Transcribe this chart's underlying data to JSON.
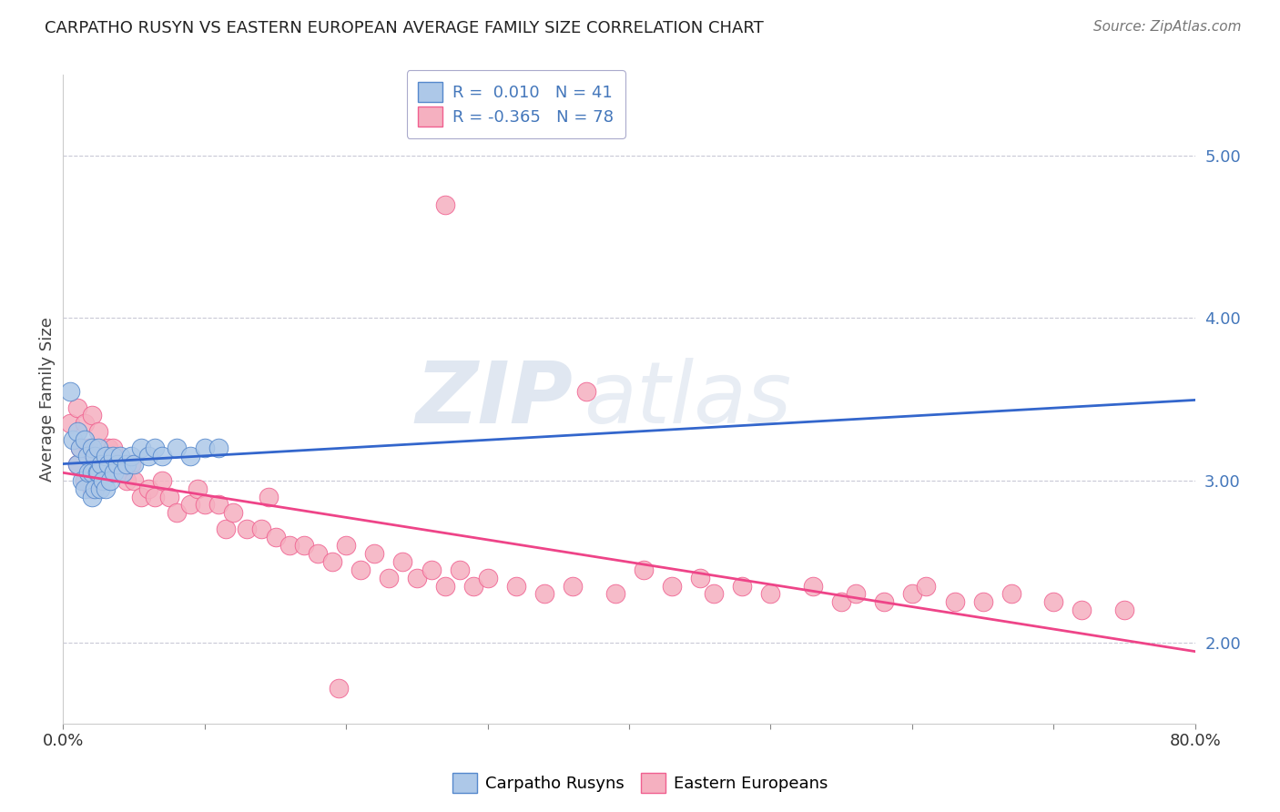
{
  "title": "CARPATHO RUSYN VS EASTERN EUROPEAN AVERAGE FAMILY SIZE CORRELATION CHART",
  "source": "Source: ZipAtlas.com",
  "ylabel": "Average Family Size",
  "xlim": [
    0.0,
    0.8
  ],
  "ylim": [
    1.5,
    5.5
  ],
  "yticks": [
    2.0,
    3.0,
    4.0,
    5.0
  ],
  "xtick_vals": [
    0.0,
    0.1,
    0.2,
    0.3,
    0.4,
    0.5,
    0.6,
    0.7,
    0.8
  ],
  "xtick_labels": [
    "0.0%",
    "",
    "",
    "",
    "",
    "",
    "",
    "",
    "80.0%"
  ],
  "blue_R": 0.01,
  "blue_N": 41,
  "pink_R": -0.365,
  "pink_N": 78,
  "blue_label": "Carpatho Rusyns",
  "pink_label": "Eastern Europeans",
  "blue_fill": "#adc8e8",
  "pink_fill": "#f5b0c0",
  "blue_edge": "#5588cc",
  "pink_edge": "#f06090",
  "blue_line": "#3366cc",
  "pink_line": "#ee4488",
  "legend_text_color": "#4477bb",
  "watermark_color": "#ccd8e8",
  "blue_points_x": [
    0.005,
    0.007,
    0.01,
    0.01,
    0.012,
    0.013,
    0.015,
    0.015,
    0.017,
    0.018,
    0.02,
    0.02,
    0.02,
    0.022,
    0.022,
    0.024,
    0.025,
    0.025,
    0.026,
    0.027,
    0.028,
    0.03,
    0.03,
    0.032,
    0.033,
    0.035,
    0.036,
    0.038,
    0.04,
    0.042,
    0.045,
    0.048,
    0.05,
    0.055,
    0.06,
    0.065,
    0.07,
    0.08,
    0.09,
    0.1,
    0.11
  ],
  "blue_points_y": [
    3.55,
    3.25,
    3.3,
    3.1,
    3.2,
    3.0,
    3.25,
    2.95,
    3.15,
    3.05,
    3.2,
    3.05,
    2.9,
    3.15,
    2.95,
    3.05,
    3.2,
    3.05,
    2.95,
    3.1,
    3.0,
    3.15,
    2.95,
    3.1,
    3.0,
    3.15,
    3.05,
    3.1,
    3.15,
    3.05,
    3.1,
    3.15,
    3.1,
    3.2,
    3.15,
    3.2,
    3.15,
    3.2,
    3.15,
    3.2,
    3.2
  ],
  "pink_points_x": [
    0.005,
    0.01,
    0.01,
    0.012,
    0.015,
    0.015,
    0.018,
    0.02,
    0.02,
    0.022,
    0.025,
    0.025,
    0.028,
    0.03,
    0.032,
    0.035,
    0.038,
    0.04,
    0.042,
    0.045,
    0.048,
    0.05,
    0.055,
    0.06,
    0.065,
    0.07,
    0.075,
    0.08,
    0.09,
    0.095,
    0.1,
    0.11,
    0.115,
    0.12,
    0.13,
    0.14,
    0.145,
    0.15,
    0.16,
    0.17,
    0.18,
    0.19,
    0.2,
    0.21,
    0.22,
    0.23,
    0.24,
    0.25,
    0.26,
    0.27,
    0.28,
    0.29,
    0.3,
    0.32,
    0.34,
    0.36,
    0.37,
    0.39,
    0.41,
    0.43,
    0.45,
    0.46,
    0.48,
    0.5,
    0.53,
    0.55,
    0.56,
    0.58,
    0.6,
    0.61,
    0.63,
    0.65,
    0.67,
    0.7,
    0.72,
    0.75,
    0.27,
    0.195
  ],
  "pink_points_y": [
    3.35,
    3.45,
    3.1,
    3.2,
    3.35,
    3.0,
    3.2,
    3.4,
    2.95,
    3.15,
    3.3,
    3.0,
    3.1,
    3.15,
    3.2,
    3.2,
    3.1,
    3.1,
    3.05,
    3.0,
    3.1,
    3.0,
    2.9,
    2.95,
    2.9,
    3.0,
    2.9,
    2.8,
    2.85,
    2.95,
    2.85,
    2.85,
    2.7,
    2.8,
    2.7,
    2.7,
    2.9,
    2.65,
    2.6,
    2.6,
    2.55,
    2.5,
    2.6,
    2.45,
    2.55,
    2.4,
    2.5,
    2.4,
    2.45,
    2.35,
    2.45,
    2.35,
    2.4,
    2.35,
    2.3,
    2.35,
    3.55,
    2.3,
    2.45,
    2.35,
    2.4,
    2.3,
    2.35,
    2.3,
    2.35,
    2.25,
    2.3,
    2.25,
    2.3,
    2.35,
    2.25,
    2.25,
    2.3,
    2.25,
    2.2,
    2.2,
    4.7,
    1.72
  ]
}
